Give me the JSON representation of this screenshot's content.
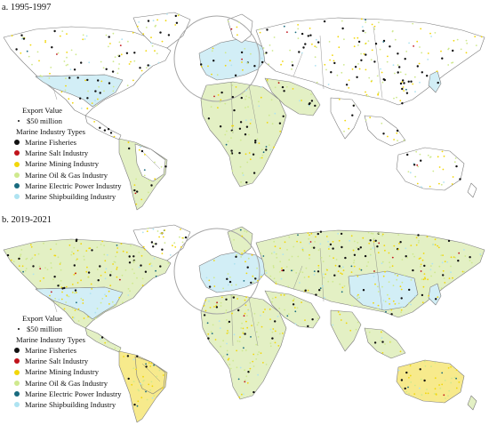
{
  "panels": [
    {
      "id": "a",
      "title": "a. 1995-1997"
    },
    {
      "id": "b",
      "title": "b. 2019-2021"
    }
  ],
  "legend": {
    "export_value_heading": "Export Value",
    "size_example_label": "$50 million",
    "types_heading": "Marine Industry Types",
    "types": [
      {
        "label": "Marine Fisheries",
        "color": "#111111"
      },
      {
        "label": "Marine Salt Industry",
        "color": "#c0131b"
      },
      {
        "label": "Marine Mining Industry",
        "color": "#f2d70a"
      },
      {
        "label": "Marine Oil & Gas Industry",
        "color": "#cfe98e"
      },
      {
        "label": "Marine Electric Power Industry",
        "color": "#186a7e"
      },
      {
        "label": "Marine Shipbuilding Industry",
        "color": "#aee3f1"
      }
    ]
  },
  "colors": {
    "land_fill": "#ffffff",
    "oil_gas_fill": "#e3f0c4",
    "shipbuilding_fill": "#d2eef6",
    "mining_fill": "#f7ea8c",
    "border": "#7d7d7d",
    "europe_circle": "#a6a6a6"
  }
}
